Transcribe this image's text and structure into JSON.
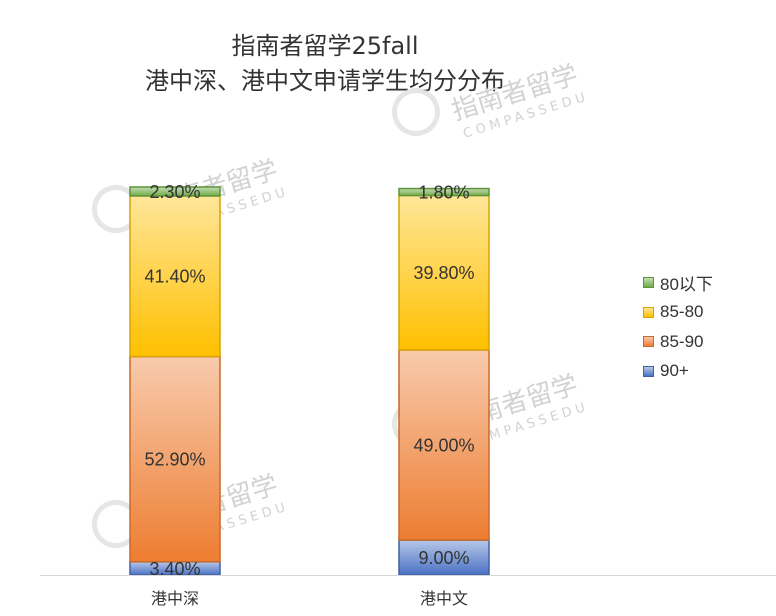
{
  "title_line1": "指南者留学25fall",
  "title_line2": "港中深、港中文申请学生均分分布",
  "watermark": "指南者留学 COMPASSEDU",
  "chart_data": {
    "type": "bar",
    "stacked": true,
    "categories": [
      "港中深",
      "港中文"
    ],
    "series": [
      {
        "name": "90+",
        "values": [
          3.4,
          9.0
        ],
        "labels": [
          "3.40%",
          "9.00%"
        ],
        "color": "#4a72c4"
      },
      {
        "name": "85-90",
        "values": [
          52.9,
          49.0
        ],
        "labels": [
          "52.90%",
          "49.00%"
        ],
        "color": "#ed7d31"
      },
      {
        "name": "85-80",
        "values": [
          41.4,
          39.8
        ],
        "labels": [
          "41.40%",
          "39.80%"
        ],
        "color": "#ffc000"
      },
      {
        "name": "80以下",
        "values": [
          2.3,
          1.8
        ],
        "labels": [
          "2.30%",
          "1.80%"
        ],
        "color": "#70ad47"
      }
    ],
    "legend_order": [
      "80以下",
      "85-80",
      "85-90",
      "90+"
    ],
    "legend_position": "right",
    "ylim": [
      0,
      100
    ],
    "grid": false
  }
}
